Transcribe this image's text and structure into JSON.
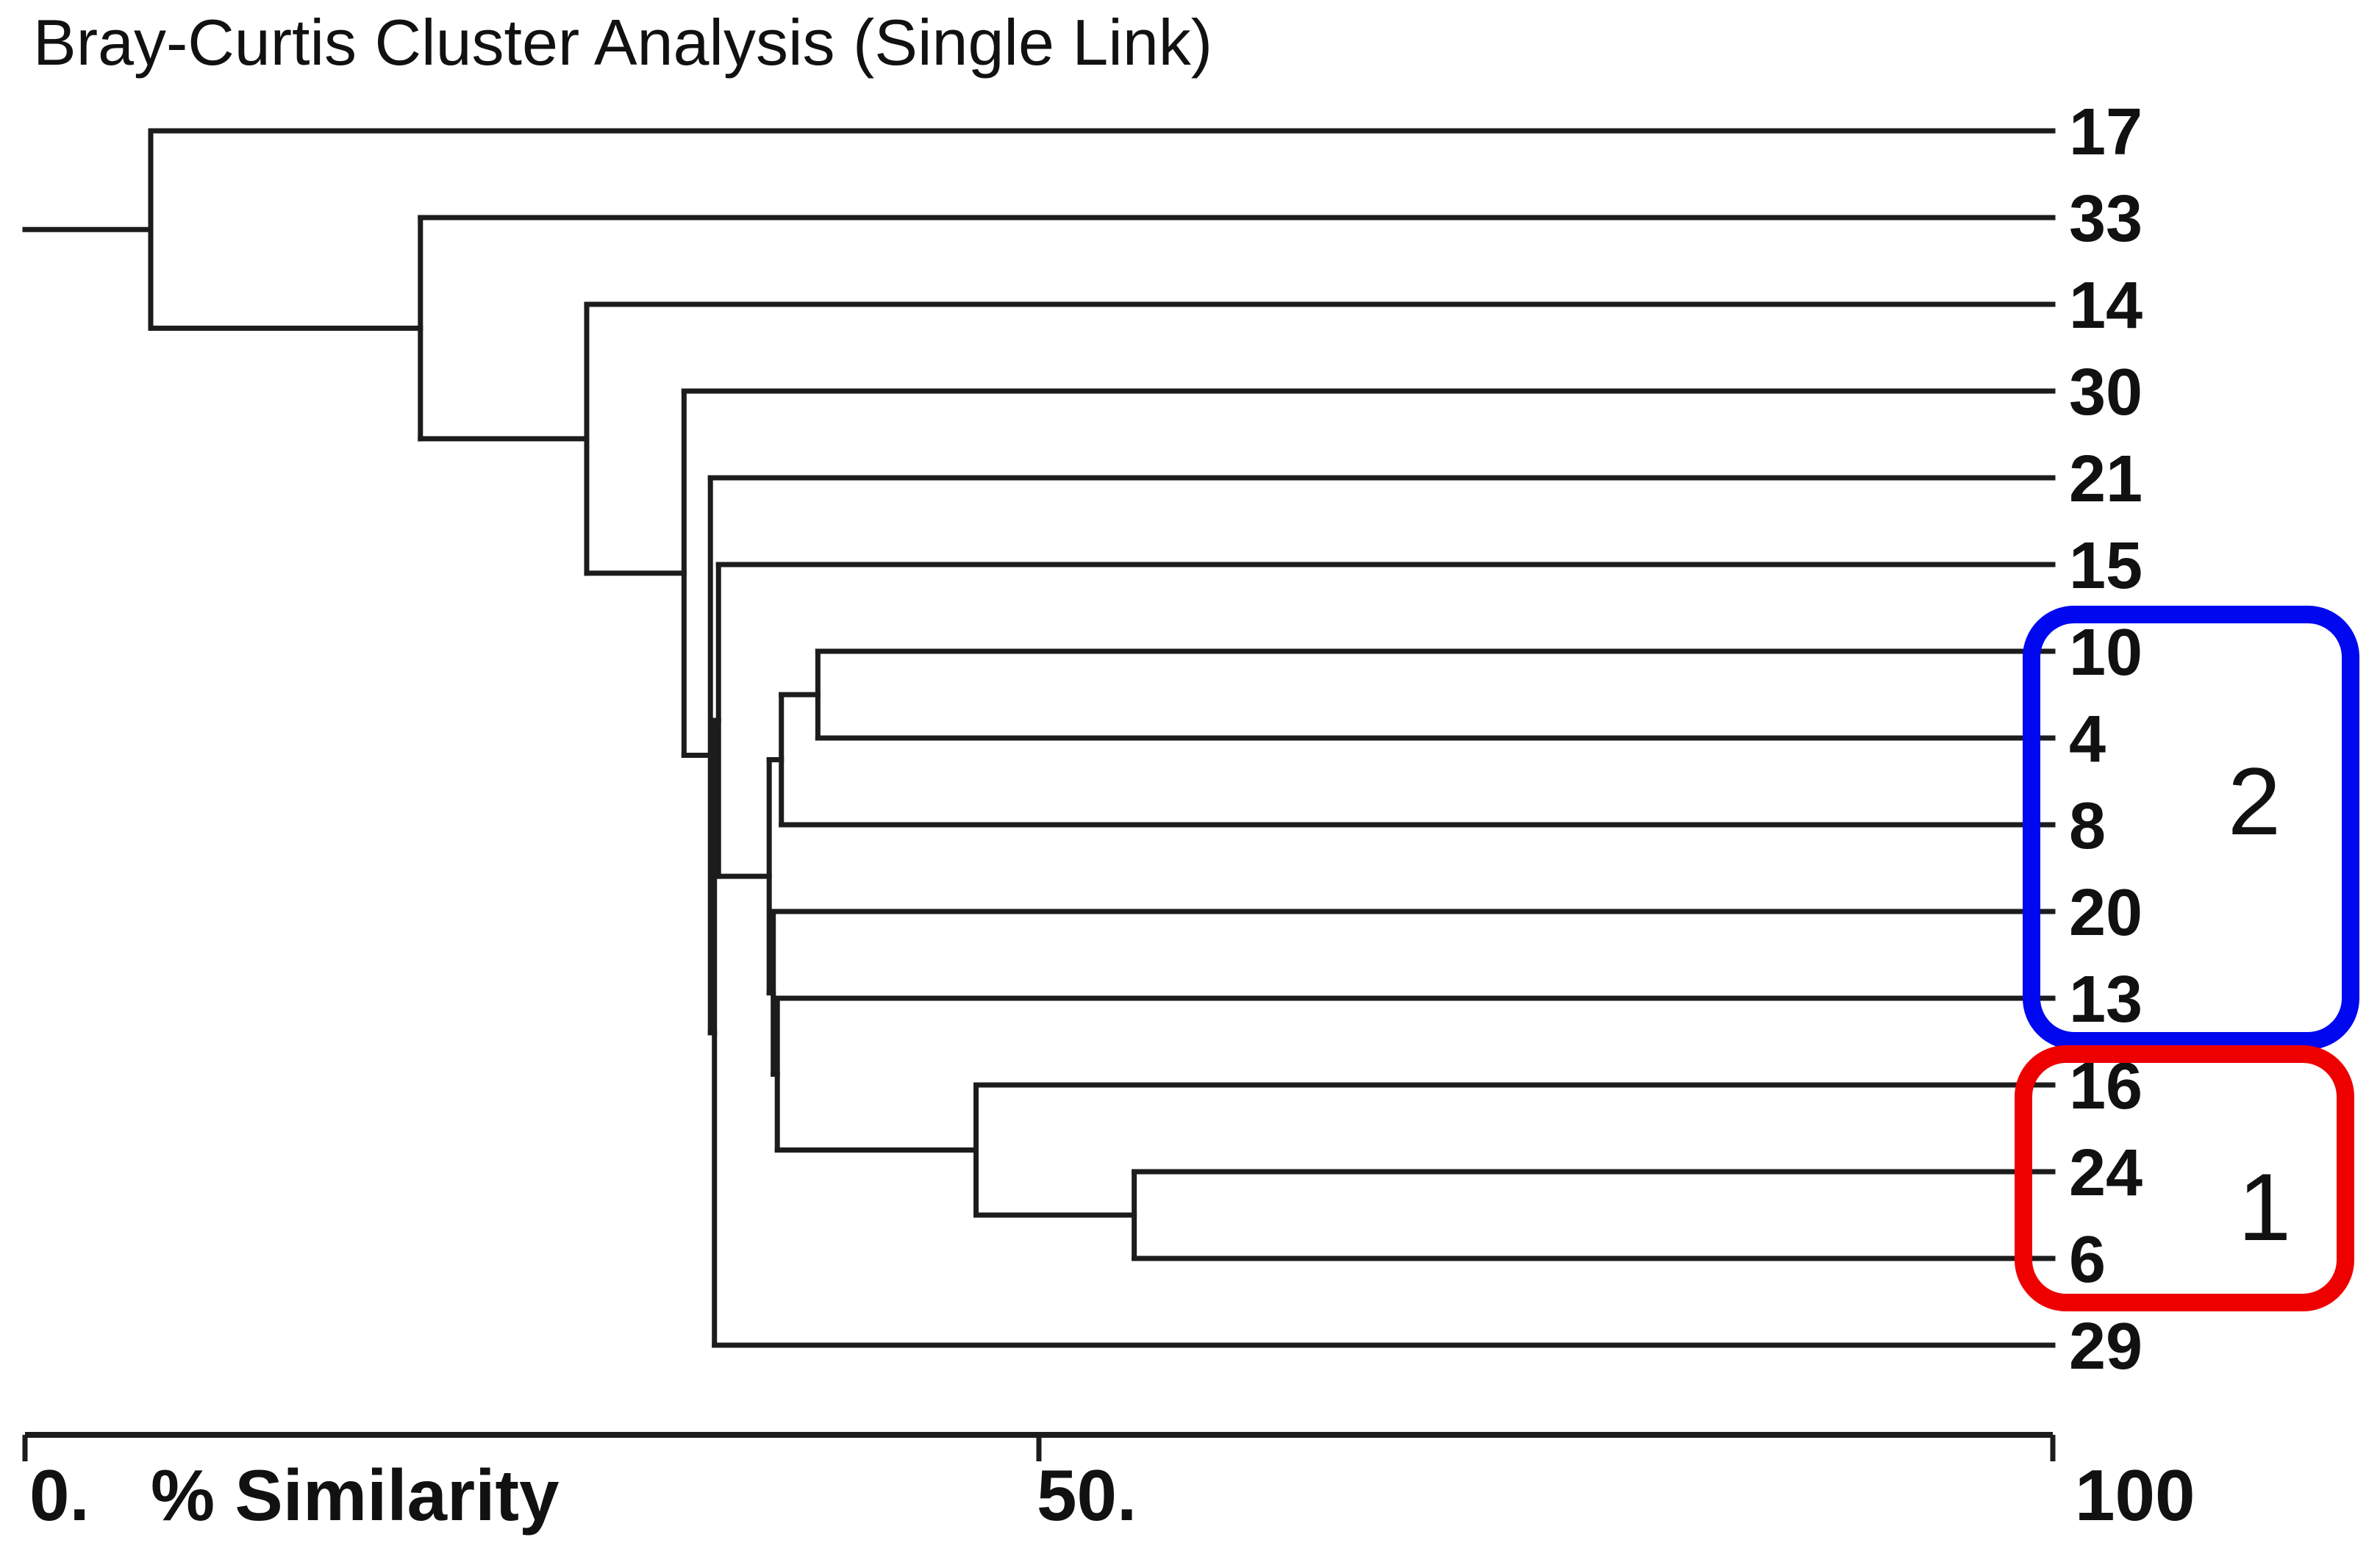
{
  "title": "Bray-Curtis Cluster Analysis (Single Link)",
  "axis": {
    "zero": "0.",
    "xlabel": "% Similarity",
    "mid": "50.",
    "max": "100"
  },
  "colors": {
    "line": "#1c1c1c",
    "text": "#111111",
    "cluster2": "#0008f0",
    "cluster1": "#ee0000"
  },
  "chart_data": {
    "type": "dendrogram",
    "title": "Bray-Curtis Cluster Analysis (Single Link)",
    "orientation": "horizontal-right",
    "xlabel": "% Similarity",
    "xlim": [
      0,
      100
    ],
    "x_ticks": [
      {
        "value": 0,
        "label": "0."
      },
      {
        "value": 50,
        "label": "50."
      },
      {
        "value": 100,
        "label": "100"
      }
    ],
    "leaves_top_to_bottom": [
      "17",
      "33",
      "14",
      "30",
      "21",
      "15",
      "10",
      "4",
      "8",
      "20",
      "13",
      "16",
      "24",
      "6",
      "29"
    ],
    "tree": {
      "sim": 6.2,
      "children": [
        {
          "leaf": "17"
        },
        {
          "sim": 19.5,
          "children": [
            {
              "leaf": "33"
            },
            {
              "sim": 27.7,
              "children": [
                {
                  "leaf": "14"
                },
                {
                  "sim": 32.5,
                  "children": [
                    {
                      "leaf": "30"
                    },
                    {
                      "sim": 33.8,
                      "children": [
                        {
                          "leaf": "21"
                        },
                        {
                          "sim": 34.0,
                          "children": [
                            {
                              "sim": 34.2,
                              "children": [
                                {
                                  "leaf": "15"
                                },
                                {
                                  "sim": 36.7,
                                  "children": [
                                    {
                                      "sim": 37.3,
                                      "children": [
                                        {
                                          "sim": 39.1,
                                          "children": [
                                            {
                                              "leaf": "10"
                                            },
                                            {
                                              "leaf": "4"
                                            }
                                          ]
                                        },
                                        {
                                          "leaf": "8"
                                        }
                                      ]
                                    },
                                    {
                                      "sim": 36.9,
                                      "children": [
                                        {
                                          "leaf": "20"
                                        },
                                        {
                                          "sim": 37.1,
                                          "children": [
                                            {
                                              "leaf": "13"
                                            },
                                            {
                                              "sim": 46.9,
                                              "children": [
                                                {
                                                  "leaf": "16"
                                                },
                                                {
                                                  "sim": 54.7,
                                                  "children": [
                                                    {
                                                      "leaf": "24"
                                                    },
                                                    {
                                                      "leaf": "6"
                                                    }
                                                  ]
                                                }
                                              ]
                                            }
                                          ]
                                        }
                                      ]
                                    }
                                  ]
                                }
                              ]
                            },
                            {
                              "leaf": "29"
                            }
                          ]
                        }
                      ]
                    }
                  ]
                }
              ]
            }
          ]
        }
      ]
    },
    "clusters": [
      {
        "label": "2",
        "color": "#0008f0",
        "leaves": [
          "10",
          "4",
          "8",
          "20",
          "13"
        ]
      },
      {
        "label": "1",
        "color": "#ee0000",
        "leaves": [
          "16",
          "24",
          "6"
        ]
      }
    ]
  }
}
